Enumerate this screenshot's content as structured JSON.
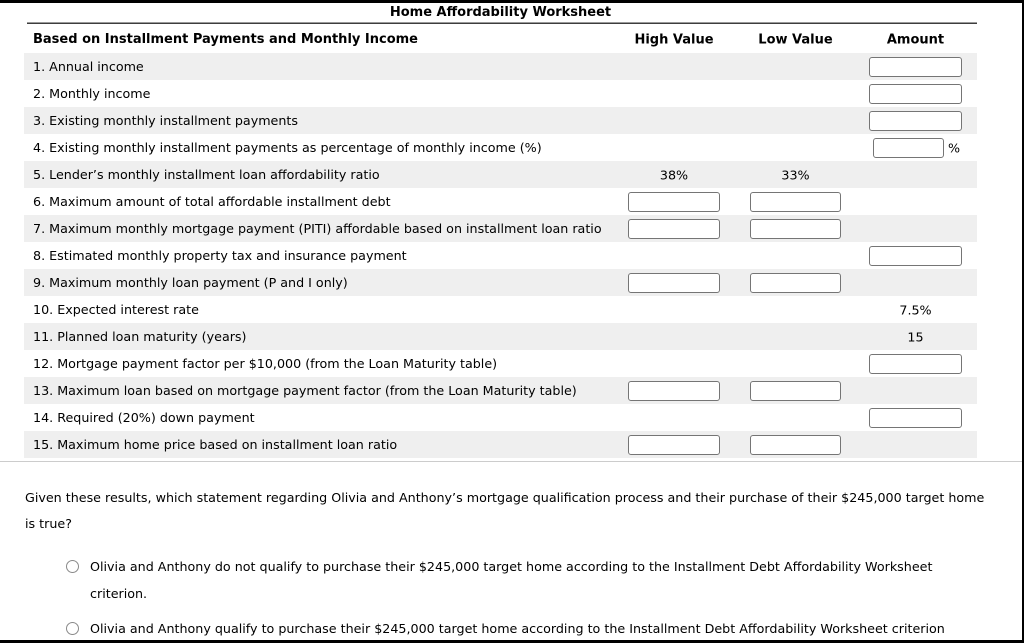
{
  "page": {
    "title": "Home Affordability Worksheet"
  },
  "table": {
    "header": {
      "label": "Based on Installment Payments and Monthly Income",
      "high": "High Value",
      "low": "Low Value",
      "amount": "Amount"
    },
    "rows": [
      {
        "label": "1. Annual income",
        "amount": "input"
      },
      {
        "label": "2. Monthly income",
        "amount": "input"
      },
      {
        "label": "3. Existing monthly installment payments",
        "amount": "input"
      },
      {
        "label": "4. Existing monthly installment payments as percentage of monthly income (%)",
        "amount": "input",
        "amount_narrow": true,
        "suffix": "%"
      },
      {
        "label": "5. Lender’s monthly installment loan affordability ratio",
        "high": "38%",
        "low": "33%"
      },
      {
        "label": "6. Maximum amount of total affordable installment debt",
        "high": "input",
        "low": "input"
      },
      {
        "label": "7. Maximum monthly mortgage payment (PITI) affordable based on installment loan ratio",
        "high": "input",
        "low": "input"
      },
      {
        "label": "8. Estimated monthly property tax and insurance payment",
        "amount": "input"
      },
      {
        "label": "9. Maximum monthly loan payment (P and I only)",
        "high": "input",
        "low": "input"
      },
      {
        "label": "10. Expected interest rate",
        "amount": "7.5%"
      },
      {
        "label": "11. Planned loan maturity (years)",
        "amount": "15"
      },
      {
        "label": "12. Mortgage payment factor per $10,000 (from the Loan Maturity table)",
        "amount": "input"
      },
      {
        "label": "13. Maximum loan based on mortgage payment factor (from the Loan Maturity table)",
        "high": "input",
        "low": "input"
      },
      {
        "label": "14. Required (20%) down payment",
        "amount": "input"
      },
      {
        "label": "15. Maximum home price based on installment loan ratio",
        "high": "input",
        "low": "input"
      }
    ]
  },
  "question": {
    "text": "Given these results, which statement regarding Olivia and Anthony’s mortgage qualification process and their purchase of their $245,000 target home is true?"
  },
  "options": [
    {
      "text": "Olivia and Anthony do not qualify to purchase their $245,000 target home according to the Installment Debt Affordability Worksheet criterion."
    },
    {
      "text": "Olivia and Anthony qualify to purchase their $245,000 target home according to the Installment Debt Affordability Worksheet criterion"
    }
  ],
  "colors": {
    "row_stripe": "#efefef",
    "input_border": "#757575",
    "page_border": "#000000",
    "divider_light": "#cccccc"
  }
}
